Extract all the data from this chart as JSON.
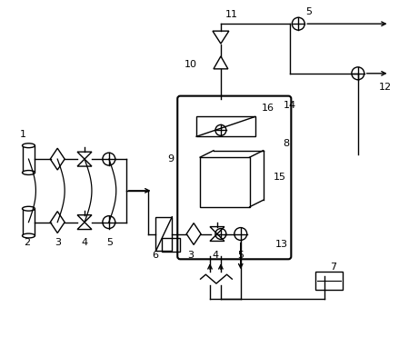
{
  "bg_color": "#ffffff",
  "line_color": "#000000",
  "fig_width": 4.61,
  "fig_height": 3.82,
  "dpi": 100
}
